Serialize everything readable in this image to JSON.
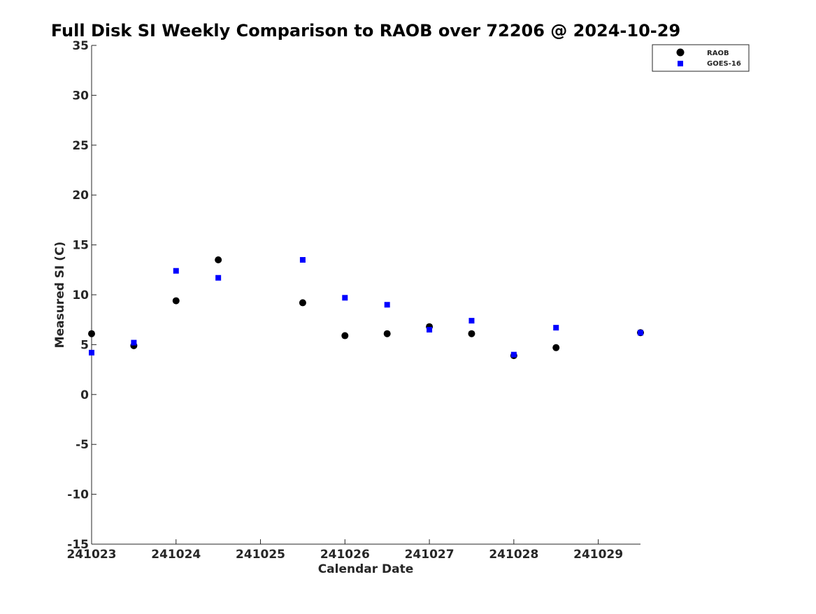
{
  "chart_data": {
    "type": "scatter",
    "title": "Full Disk SI Weekly Comparison to RAOB over 72206 @ 2024-10-29",
    "xlabel": "Calendar Date",
    "ylabel": "Measured SI (C)",
    "x_ticks": [
      {
        "value": 0,
        "label": "241023"
      },
      {
        "value": 1,
        "label": "241024"
      },
      {
        "value": 2,
        "label": "241025"
      },
      {
        "value": 3,
        "label": "241026"
      },
      {
        "value": 4,
        "label": "241027"
      },
      {
        "value": 5,
        "label": "241028"
      },
      {
        "value": 6,
        "label": "241029"
      }
    ],
    "y_ticks": [
      {
        "value": 35,
        "label": "35"
      },
      {
        "value": 30,
        "label": "30"
      },
      {
        "value": 25,
        "label": "25"
      },
      {
        "value": 20,
        "label": "20"
      },
      {
        "value": 15,
        "label": "15"
      },
      {
        "value": 10,
        "label": "10"
      },
      {
        "value": 5,
        "label": "5"
      },
      {
        "value": 0,
        "label": "0"
      },
      {
        "value": -5,
        "label": "-5"
      },
      {
        "value": -10,
        "label": "-10"
      },
      {
        "value": -15,
        "label": "-15"
      }
    ],
    "xlim": [
      0,
      6.5
    ],
    "ylim": [
      -15,
      35
    ],
    "grid": false,
    "legend_position": "top-right",
    "series": [
      {
        "name": "RAOB",
        "marker": "circle",
        "color": "#000000",
        "points": [
          {
            "x": 0.0,
            "y": 6.1
          },
          {
            "x": 0.5,
            "y": 4.9
          },
          {
            "x": 1.0,
            "y": 9.4
          },
          {
            "x": 1.5,
            "y": 13.5
          },
          {
            "x": 2.5,
            "y": 9.2
          },
          {
            "x": 3.0,
            "y": 5.9
          },
          {
            "x": 3.5,
            "y": 6.1
          },
          {
            "x": 4.0,
            "y": 6.8
          },
          {
            "x": 4.5,
            "y": 6.1
          },
          {
            "x": 5.0,
            "y": 3.9
          },
          {
            "x": 5.5,
            "y": 4.7
          },
          {
            "x": 6.5,
            "y": 6.2
          }
        ]
      },
      {
        "name": "GOES-16",
        "marker": "square",
        "color": "#0000ff",
        "points": [
          {
            "x": 0.0,
            "y": 4.2
          },
          {
            "x": 0.5,
            "y": 5.2
          },
          {
            "x": 1.0,
            "y": 12.4
          },
          {
            "x": 1.5,
            "y": 11.7
          },
          {
            "x": 2.5,
            "y": 13.5
          },
          {
            "x": 3.0,
            "y": 9.7
          },
          {
            "x": 3.5,
            "y": 9.0
          },
          {
            "x": 4.0,
            "y": 6.5
          },
          {
            "x": 4.5,
            "y": 7.4
          },
          {
            "x": 5.0,
            "y": 4.0
          },
          {
            "x": 5.5,
            "y": 6.7
          },
          {
            "x": 6.5,
            "y": 6.2
          }
        ]
      }
    ]
  }
}
